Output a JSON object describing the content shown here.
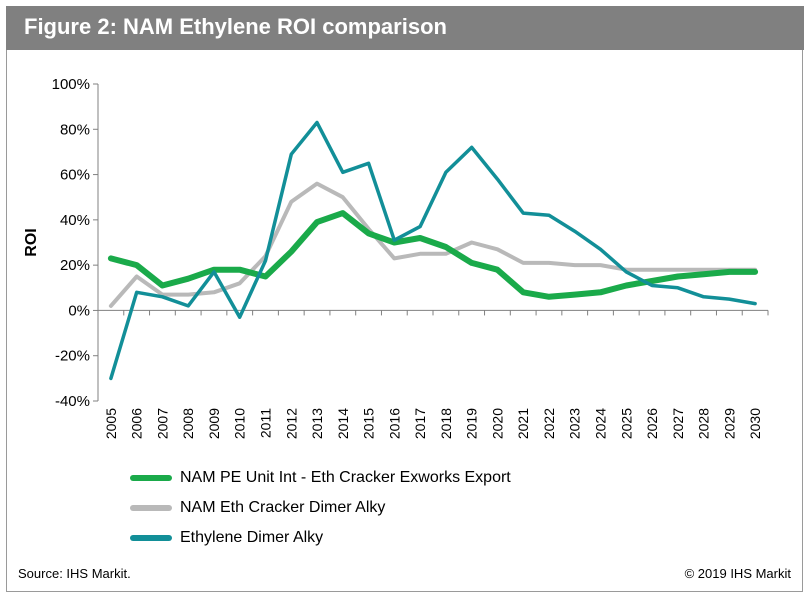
{
  "header": {
    "title": "Figure 2: NAM Ethylene ROI comparison"
  },
  "footer": {
    "source": "Source: IHS Markit.",
    "copyright": "© 2019 IHS Markit"
  },
  "colors": {
    "header_bg": "#808080"
  },
  "chart_data": {
    "type": "line",
    "title": "",
    "xlabel": "",
    "ylabel": "ROI",
    "x": [
      "2005",
      "2006",
      "2007",
      "2008",
      "2009",
      "2010",
      "2011",
      "2012",
      "2013",
      "2014",
      "2015",
      "2016",
      "2017",
      "2018",
      "2019",
      "2020",
      "2021",
      "2022",
      "2023",
      "2024",
      "2025",
      "2026",
      "2027",
      "2028",
      "2029",
      "2030"
    ],
    "ylim": [
      -40,
      100
    ],
    "yticks": [
      -40,
      -20,
      0,
      20,
      40,
      60,
      80,
      100
    ],
    "ytick_labels": [
      "-40%",
      "-20%",
      "0%",
      "20%",
      "40%",
      "60%",
      "80%",
      "100%"
    ],
    "grid": false,
    "legend_position": "bottom",
    "series": [
      {
        "name": "NAM PE Unit Int - Eth Cracker Exworks Export",
        "color": "#1aaa4a",
        "values": [
          23,
          20,
          11,
          14,
          18,
          18,
          15,
          26,
          39,
          43,
          34,
          30,
          32,
          28,
          21,
          18,
          8,
          6,
          7,
          8,
          11,
          13,
          15,
          16,
          17,
          17
        ]
      },
      {
        "name": "NAM Eth Cracker Dimer Alky",
        "color": "#b9b9b9",
        "values": [
          2,
          15,
          7,
          7,
          8,
          12,
          24,
          48,
          56,
          50,
          36,
          23,
          25,
          25,
          30,
          27,
          21,
          21,
          20,
          20,
          18,
          18,
          18,
          18,
          18,
          18
        ]
      },
      {
        "name": "Ethylene Dimer Alky",
        "color": "#128f98",
        "values": [
          -30,
          8,
          6,
          2,
          17,
          -3,
          22,
          69,
          83,
          61,
          65,
          31,
          37,
          61,
          72,
          58,
          43,
          42,
          35,
          27,
          17,
          11,
          10,
          6,
          5,
          3
        ]
      }
    ]
  }
}
